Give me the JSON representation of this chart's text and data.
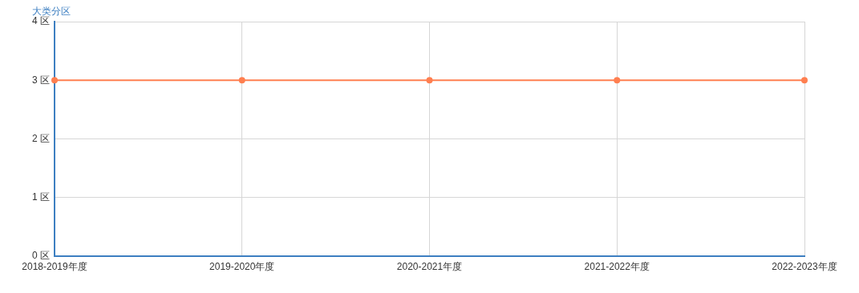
{
  "chart_data": {
    "type": "line",
    "ylabel": "大类分区",
    "categories": [
      "2018-2019年度",
      "2019-2020年度",
      "2020-2021年度",
      "2021-2022年度",
      "2022-2023年度"
    ],
    "series": [
      {
        "color": "#ff7f50",
        "values": [
          3,
          3,
          3,
          3,
          3
        ]
      }
    ],
    "ylim": [
      0,
      4
    ],
    "yticks": [
      {
        "value": 0,
        "label": "0 区"
      },
      {
        "value": 1,
        "label": "1 区"
      },
      {
        "value": 2,
        "label": "2 区"
      },
      {
        "value": 3,
        "label": "3 区"
      },
      {
        "value": 4,
        "label": "4 区"
      }
    ],
    "grid": true,
    "marker": "circle",
    "line_style": "solid"
  }
}
